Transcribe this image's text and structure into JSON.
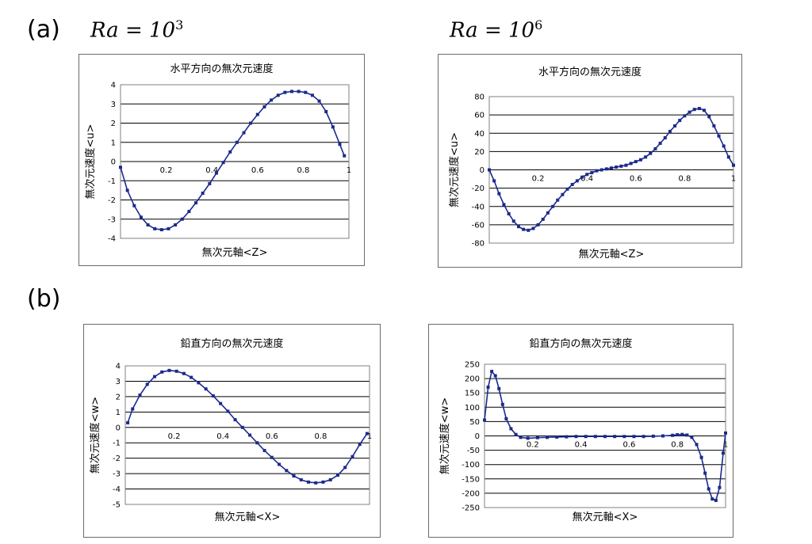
{
  "figure": {
    "label_a": "(a)",
    "label_b": "(b)",
    "ra_left_prefix": "Ra = 10",
    "ra_left_exp": "3",
    "ra_right_prefix": "Ra = 10",
    "ra_right_exp": "6"
  },
  "chart_data": [
    {
      "id": "a1",
      "type": "line",
      "title": "水平方向の無次元速度",
      "xlabel": "無次元軸<Z>",
      "ylabel": "無次元速度<u>",
      "xlim": [
        0,
        1
      ],
      "ylim": [
        -4,
        4
      ],
      "yticks": [
        4,
        3,
        2,
        1,
        0,
        -1,
        -2,
        -3,
        -4
      ],
      "xticks": [
        0.2,
        0.4,
        0.6,
        0.8,
        1
      ],
      "series": [
        {
          "color": "#1b2a8c",
          "x": [
            0.0,
            0.03,
            0.06,
            0.09,
            0.12,
            0.15,
            0.18,
            0.21,
            0.24,
            0.27,
            0.3,
            0.33,
            0.36,
            0.39,
            0.42,
            0.45,
            0.48,
            0.51,
            0.54,
            0.57,
            0.6,
            0.63,
            0.66,
            0.69,
            0.72,
            0.75,
            0.78,
            0.81,
            0.84,
            0.87,
            0.9,
            0.93,
            0.96,
            0.98
          ],
          "y": [
            -0.3,
            -1.5,
            -2.3,
            -2.9,
            -3.3,
            -3.5,
            -3.55,
            -3.5,
            -3.3,
            -3.0,
            -2.6,
            -2.15,
            -1.65,
            -1.15,
            -0.6,
            -0.05,
            0.5,
            1.0,
            1.5,
            2.0,
            2.45,
            2.85,
            3.2,
            3.45,
            3.6,
            3.65,
            3.65,
            3.6,
            3.45,
            3.15,
            2.6,
            1.8,
            0.9,
            0.3
          ]
        }
      ]
    },
    {
      "id": "a2",
      "type": "line",
      "title": "水平方向の無次元速度",
      "xlabel": "無次元軸<Z>",
      "ylabel": "無次元速度<u>",
      "xlim": [
        0,
        1
      ],
      "ylim": [
        -80,
        80
      ],
      "yticks": [
        80,
        60,
        40,
        20,
        0,
        -20,
        -40,
        -60,
        -80
      ],
      "xticks": [
        0.2,
        0.4,
        0.6,
        0.8,
        1
      ],
      "series": [
        {
          "color": "#1b2a8c",
          "x": [
            0.0,
            0.02,
            0.04,
            0.06,
            0.08,
            0.1,
            0.12,
            0.14,
            0.16,
            0.18,
            0.2,
            0.22,
            0.24,
            0.26,
            0.28,
            0.3,
            0.32,
            0.34,
            0.36,
            0.38,
            0.4,
            0.42,
            0.44,
            0.46,
            0.48,
            0.5,
            0.52,
            0.54,
            0.56,
            0.58,
            0.6,
            0.62,
            0.64,
            0.66,
            0.68,
            0.7,
            0.72,
            0.74,
            0.76,
            0.78,
            0.8,
            0.82,
            0.84,
            0.86,
            0.88,
            0.9,
            0.92,
            0.94,
            0.96,
            0.98,
            1.0
          ],
          "y": [
            0,
            -12,
            -26,
            -38,
            -48,
            -56,
            -62,
            -65,
            -66,
            -64,
            -60,
            -54,
            -47,
            -40,
            -33,
            -27,
            -21,
            -16,
            -12,
            -8,
            -5,
            -3,
            -1,
            0,
            1,
            2,
            3,
            4,
            5,
            7,
            9,
            11,
            14,
            18,
            23,
            29,
            35,
            42,
            48,
            54,
            59,
            63,
            66,
            67,
            65,
            58,
            48,
            37,
            26,
            14,
            5
          ]
        }
      ]
    },
    {
      "id": "b1",
      "type": "line",
      "title": "鉛直方向の無次元速度",
      "xlabel": "無次元軸<X>",
      "ylabel": "無次元速度<w>",
      "xlim": [
        0,
        1
      ],
      "ylim": [
        -5,
        4
      ],
      "yticks": [
        4,
        3,
        2,
        1,
        0,
        -1,
        -2,
        -3,
        -4,
        -5
      ],
      "xticks": [
        0.2,
        0.4,
        0.6,
        0.8,
        1
      ],
      "series": [
        {
          "color": "#1b2a8c",
          "x": [
            0.01,
            0.03,
            0.06,
            0.09,
            0.12,
            0.15,
            0.18,
            0.21,
            0.24,
            0.27,
            0.3,
            0.33,
            0.36,
            0.39,
            0.42,
            0.45,
            0.48,
            0.51,
            0.54,
            0.57,
            0.6,
            0.63,
            0.66,
            0.69,
            0.72,
            0.75,
            0.78,
            0.81,
            0.84,
            0.87,
            0.9,
            0.93,
            0.96,
            0.99
          ],
          "y": [
            0.3,
            1.2,
            2.1,
            2.8,
            3.3,
            3.6,
            3.7,
            3.65,
            3.5,
            3.25,
            2.9,
            2.5,
            2.05,
            1.55,
            1.05,
            0.5,
            0.0,
            -0.5,
            -1.0,
            -1.5,
            -1.95,
            -2.4,
            -2.8,
            -3.15,
            -3.4,
            -3.55,
            -3.6,
            -3.55,
            -3.4,
            -3.1,
            -2.6,
            -1.9,
            -1.1,
            -0.4
          ]
        }
      ]
    },
    {
      "id": "b2",
      "type": "line",
      "title": "鉛直方向の無次元速度",
      "xlabel": "無次元軸<X>",
      "ylabel": "無次元速度<w>",
      "xlim": [
        0,
        1
      ],
      "ylim": [
        -250,
        250
      ],
      "yticks": [
        250,
        200,
        150,
        100,
        50,
        0,
        -50,
        -100,
        -150,
        -200,
        -250
      ],
      "xticks": [
        0.2,
        0.4,
        0.6,
        0.8,
        1
      ],
      "series": [
        {
          "color": "#1b2a8c",
          "x": [
            0.0,
            0.015,
            0.03,
            0.045,
            0.06,
            0.075,
            0.09,
            0.11,
            0.13,
            0.15,
            0.18,
            0.22,
            0.26,
            0.3,
            0.34,
            0.38,
            0.42,
            0.46,
            0.5,
            0.54,
            0.58,
            0.62,
            0.66,
            0.7,
            0.74,
            0.78,
            0.8,
            0.82,
            0.84,
            0.86,
            0.88,
            0.9,
            0.915,
            0.93,
            0.945,
            0.96,
            0.975,
            0.99,
            1.0
          ],
          "y": [
            55,
            170,
            225,
            210,
            165,
            110,
            60,
            25,
            5,
            -5,
            -8,
            -6,
            -5,
            -4,
            -3,
            -2,
            -2,
            -2,
            -2,
            -2,
            -2,
            -2,
            -2,
            -1,
            0,
            2,
            4,
            5,
            3,
            -5,
            -30,
            -75,
            -130,
            -185,
            -220,
            -225,
            -180,
            -60,
            10
          ]
        }
      ]
    }
  ]
}
